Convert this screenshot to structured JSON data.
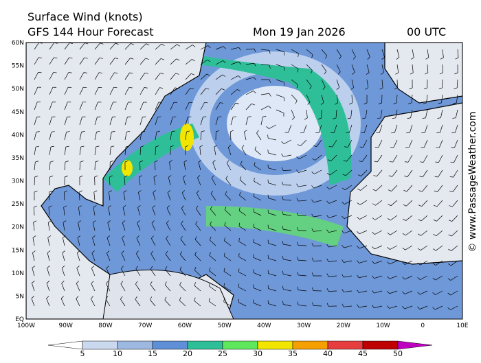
{
  "header": {
    "title": "Surface Wind (knots)",
    "subtitle": "GFS 144 Hour Forecast",
    "date": "Mon 19 Jan 2026",
    "time": "00 UTC"
  },
  "map": {
    "lat_labels": [
      "60N",
      "55N",
      "50N",
      "45N",
      "40N",
      "35N",
      "30N",
      "25N",
      "20N",
      "15N",
      "10N",
      "5N",
      "EQ"
    ],
    "lon_labels": [
      "100W",
      "90W",
      "80W",
      "70W",
      "60W",
      "50W",
      "40W",
      "30W",
      "20W",
      "10W",
      "0",
      "10E"
    ]
  },
  "colorbar": {
    "labels": [
      "5",
      "10",
      "15",
      "20",
      "25",
      "30",
      "35",
      "40",
      "45",
      "50"
    ],
    "colors": [
      "#ffffff",
      "#cbd9ef",
      "#9db9e2",
      "#5f8fd6",
      "#2fbf98",
      "#5fe85c",
      "#f2e600",
      "#f59f00",
      "#e63e3e",
      "#bf0000",
      "#c000c0"
    ]
  },
  "watermark": "© www.PassageWeather.com"
}
